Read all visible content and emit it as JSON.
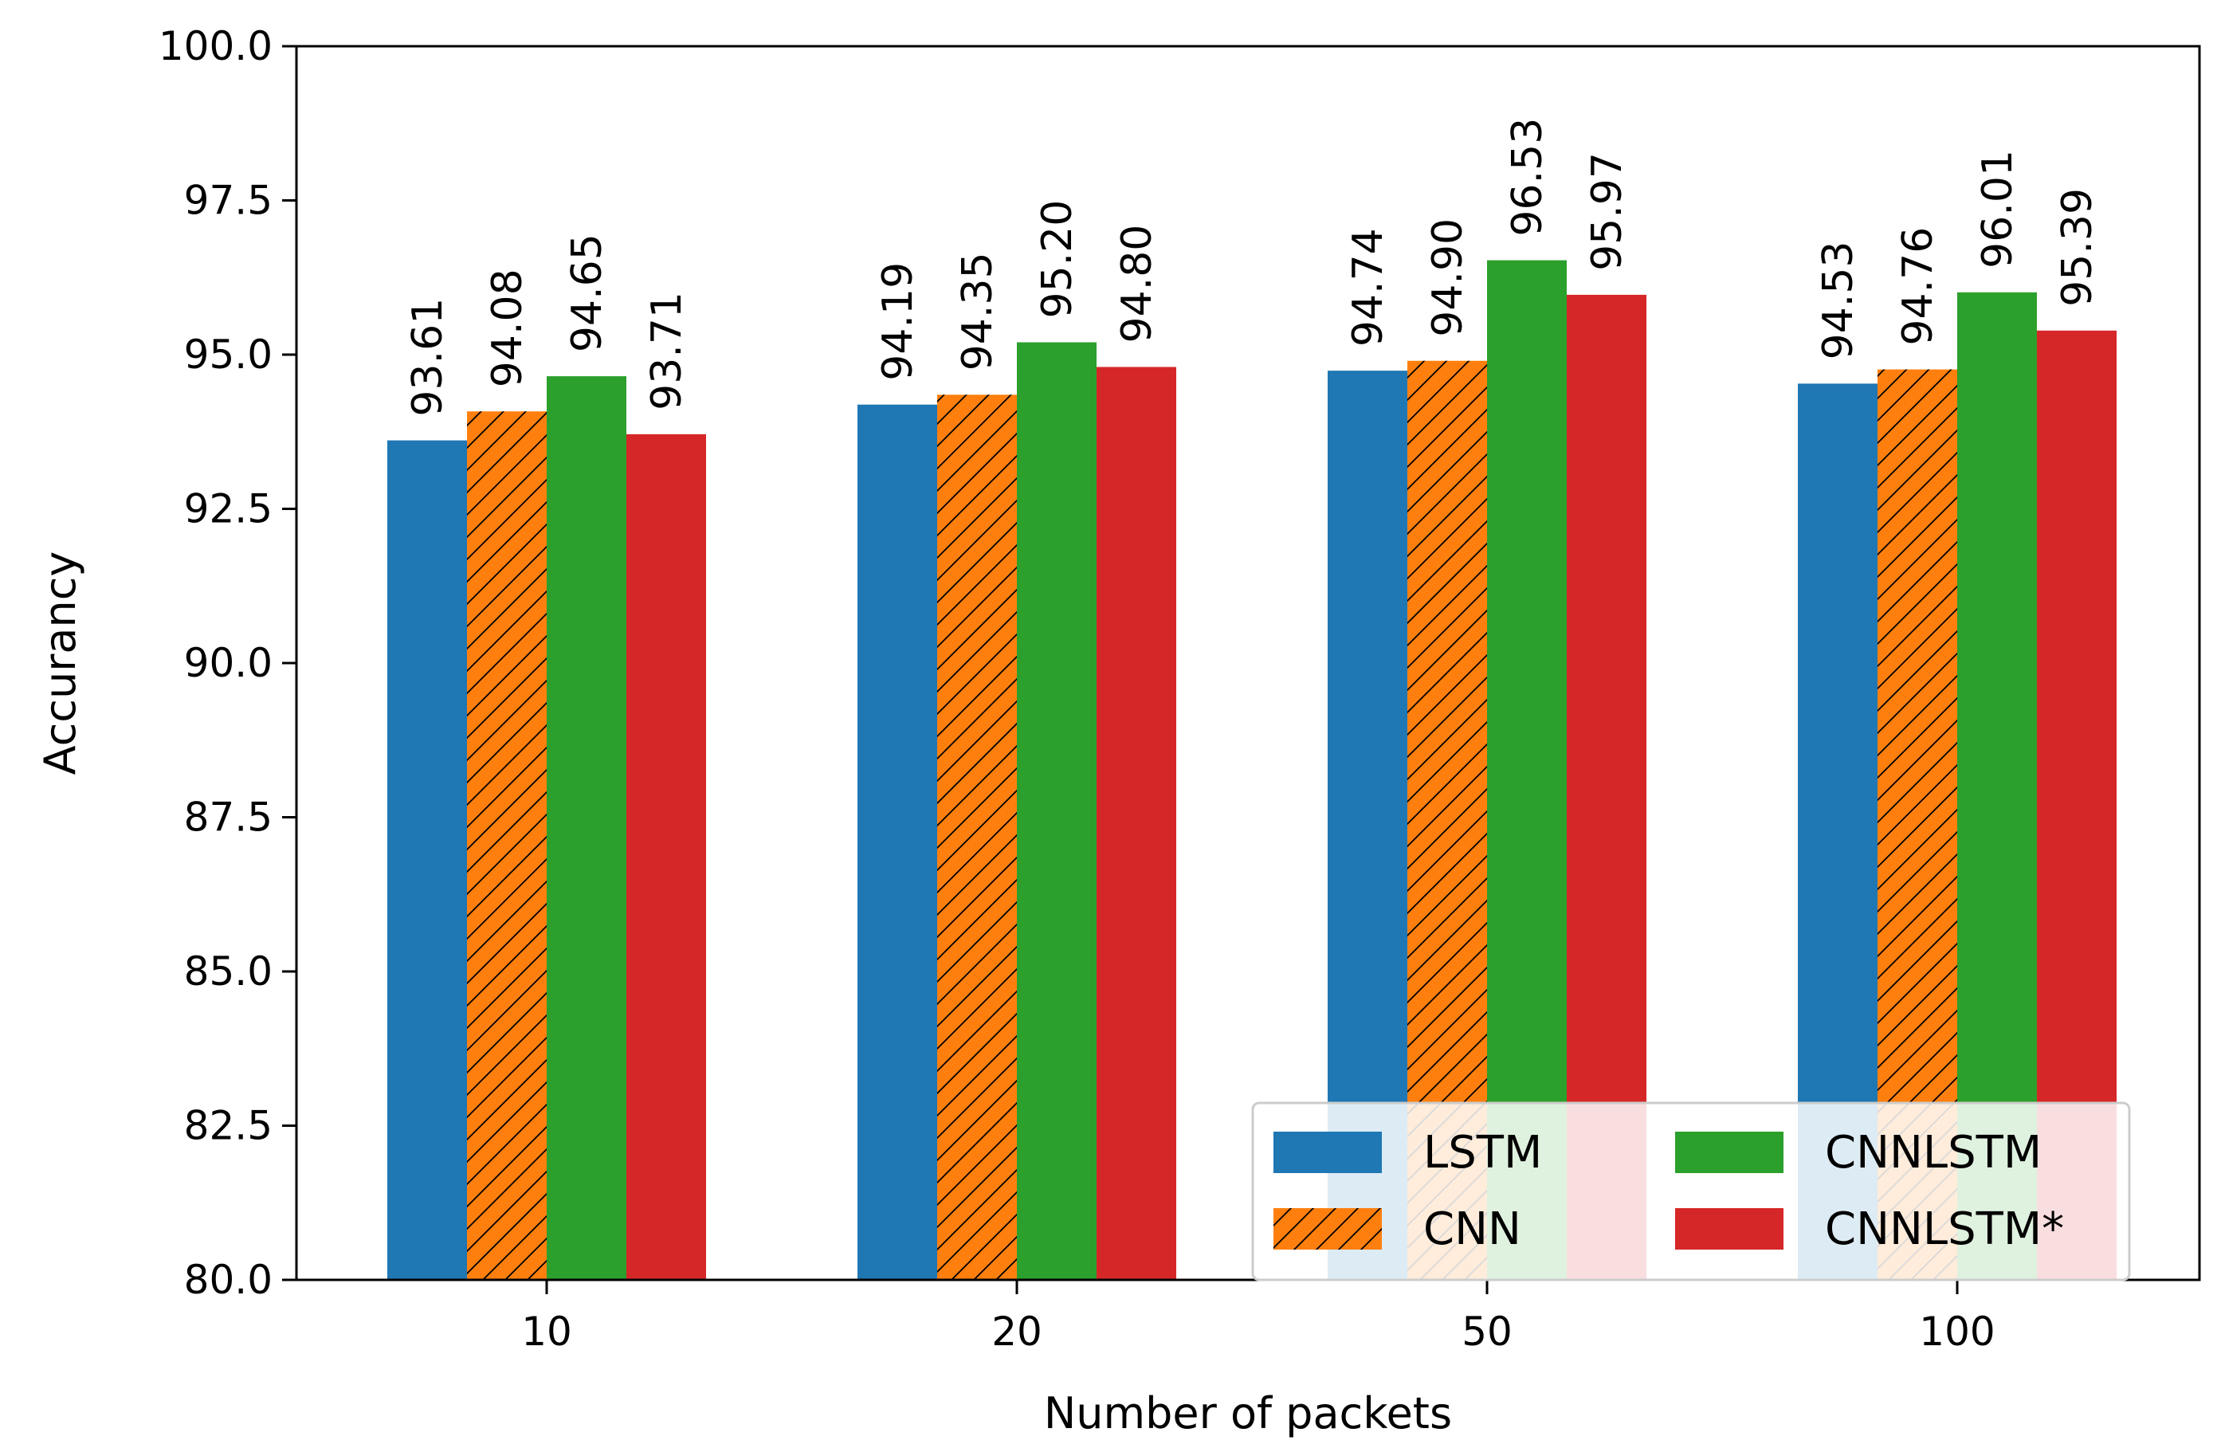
{
  "chart_data": {
    "type": "bar",
    "title": "",
    "xlabel": "Number of packets",
    "ylabel": "Accurancy",
    "categories": [
      "10",
      "20",
      "50",
      "100"
    ],
    "ylim": [
      80.0,
      100.0
    ],
    "yticks": [
      "80.0",
      "82.5",
      "85.0",
      "87.5",
      "90.0",
      "92.5",
      "95.0",
      "97.5",
      "100.0"
    ],
    "series": [
      {
        "name": "LSTM",
        "color": "#1f77b4",
        "hatch": false,
        "values": [
          93.61,
          94.19,
          94.74,
          94.53
        ],
        "labels": [
          "93.61",
          "94.19",
          "94.74",
          "94.53"
        ]
      },
      {
        "name": "CNN",
        "color": "#ff7f0e",
        "hatch": true,
        "values": [
          94.08,
          94.35,
          94.9,
          94.76
        ],
        "labels": [
          "94.08",
          "94.35",
          "94.90",
          "94.76"
        ]
      },
      {
        "name": "CNNLSTM",
        "color": "#2ca02c",
        "hatch": false,
        "values": [
          94.65,
          95.2,
          96.53,
          96.01
        ],
        "labels": [
          "94.65",
          "95.20",
          "96.53",
          "96.01"
        ]
      },
      {
        "name": "CNNLSTM*",
        "color": "#d62728",
        "hatch": false,
        "values": [
          93.71,
          94.8,
          95.97,
          95.39
        ],
        "labels": [
          "93.71",
          "94.80",
          "95.97",
          "95.39"
        ]
      }
    ],
    "legend": {
      "position": "lower-right",
      "columns": 2
    },
    "grid": false
  }
}
